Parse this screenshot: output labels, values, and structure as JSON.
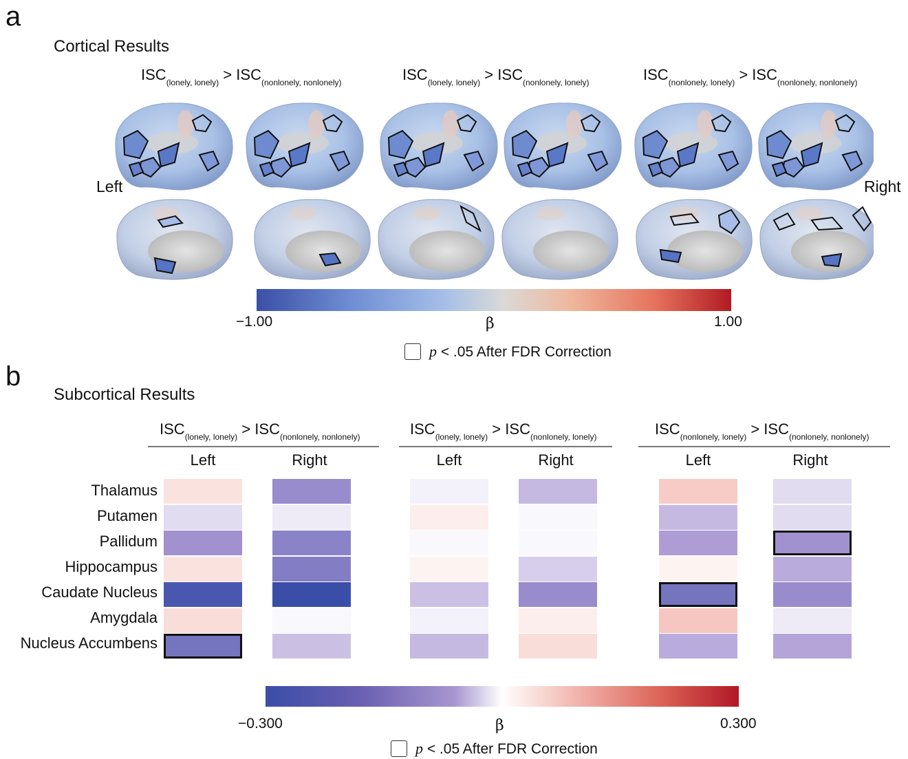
{
  "panel_a": {
    "letter": "a",
    "title": "Cortical Results",
    "left_label": "Left",
    "right_label": "Right",
    "contrasts": [
      {
        "base1": "ISC",
        "sub1": "(lonely, lonely)",
        "op": ">",
        "base2": "ISC",
        "sub2": "(nonlonely, nonlonely)"
      },
      {
        "base1": "ISC",
        "sub1": "(lonely, lonely)",
        "op": ">",
        "base2": "ISC",
        "sub2": "(nonlonely, lonely)"
      },
      {
        "base1": "ISC",
        "sub1": "(nonlonely, lonely)",
        "op": ">",
        "base2": "ISC",
        "sub2": "(nonlonely, nonlonely)"
      }
    ],
    "colorbar": {
      "min_label": "−1.00",
      "max_label": "1.00",
      "label": "β",
      "min": -1.0,
      "max": 1.0
    },
    "legend": {
      "p_symbol": "p",
      "text": " < .05 After FDR Correction"
    }
  },
  "panel_b": {
    "letter": "b",
    "title": "Subcortical Results",
    "contrasts": [
      {
        "base1": "ISC",
        "sub1": "(lonely, lonely)",
        "op": ">",
        "base2": "ISC",
        "sub2": "(nonlonely, nonlonely)"
      },
      {
        "base1": "ISC",
        "sub1": "(lonely, lonely)",
        "op": ">",
        "base2": "ISC",
        "sub2": "(nonlonely, lonely)"
      },
      {
        "base1": "ISC",
        "sub1": "(nonlonely, lonely)",
        "op": ">",
        "base2": "ISC",
        "sub2": "(nonlonely, nonlonely)"
      }
    ],
    "hemispheres": [
      "Left",
      "Right"
    ],
    "colorbar": {
      "min_label": "−0.300",
      "max_label": "0.300",
      "label": "β",
      "min": -0.3,
      "max": 0.3
    },
    "legend": {
      "p_symbol": "p",
      "text": " < .05 After FDR Correction"
    }
  },
  "chart_data": {
    "type": "heatmap",
    "rows": [
      "Thalamus",
      "Putamen",
      "Pallidum",
      "Hippocampus",
      "Caudate Nucleus",
      "Amygdala",
      "Nucleus Accumbens"
    ],
    "columns": [
      {
        "contrast": 0,
        "hemisphere": "Left"
      },
      {
        "contrast": 0,
        "hemisphere": "Right"
      },
      {
        "contrast": 1,
        "hemisphere": "Left"
      },
      {
        "contrast": 1,
        "hemisphere": "Right"
      },
      {
        "contrast": 2,
        "hemisphere": "Left"
      },
      {
        "contrast": 2,
        "hemisphere": "Right"
      }
    ],
    "values": [
      [
        0.05,
        -0.17,
        -0.02,
        -0.1,
        0.09,
        -0.05
      ],
      [
        -0.05,
        -0.03,
        0.03,
        -0.01,
        -0.1,
        -0.05
      ],
      [
        -0.16,
        -0.19,
        -0.01,
        -0.01,
        -0.14,
        -0.16
      ],
      [
        0.05,
        -0.2,
        0.02,
        -0.07,
        0.02,
        -0.12
      ],
      [
        -0.28,
        -0.3,
        -0.09,
        -0.17,
        -0.22,
        -0.17
      ],
      [
        0.06,
        -0.01,
        -0.02,
        0.03,
        0.1,
        -0.03
      ],
      [
        -0.22,
        -0.09,
        -0.1,
        0.06,
        -0.12,
        -0.13
      ]
    ],
    "significant": [
      [
        6,
        0
      ],
      [
        4,
        4
      ],
      [
        2,
        5
      ]
    ],
    "zlim": [
      -0.3,
      0.3
    ]
  }
}
